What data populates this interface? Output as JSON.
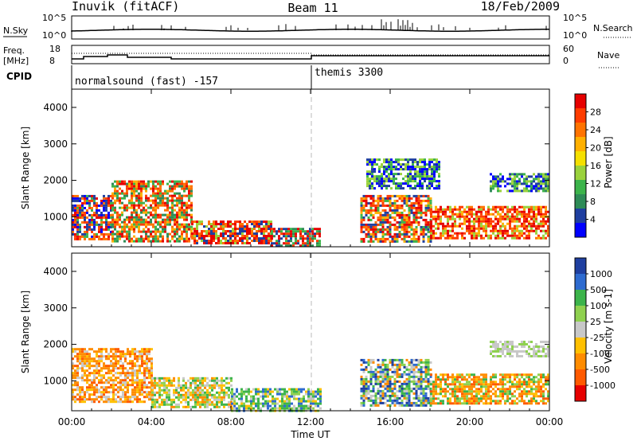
{
  "header": {
    "station": "Inuvik (fitACF)",
    "beam": "Beam 11",
    "date": "18/Feb/2009"
  },
  "top_panels": {
    "nsky_label": "N.Sky",
    "nsky_ticks": [
      "10^5",
      "10^0"
    ],
    "nsearch_label": "N.Search",
    "nsearch_ticks": [
      "10^5",
      "10^0"
    ],
    "freq_label_1": "Freq.",
    "freq_label_2": "[MHz]",
    "freq_ticks": [
      "18",
      "8"
    ],
    "nave_label": "Nave",
    "nave_ticks": [
      "60",
      "0"
    ],
    "cpid_label": "CPID",
    "cpid_segments": [
      "normalsound (fast) -157",
      "themis 3300"
    ]
  },
  "chart_data": [
    {
      "type": "heatmap",
      "ylabel": "Slant Range [km]",
      "y_ticks": [
        "1000",
        "2000",
        "3000",
        "4000"
      ],
      "y_tick_values": [
        1000,
        2000,
        3000,
        4000
      ],
      "ylim": [
        180,
        4500
      ],
      "x_ticks": [
        "00:00",
        "04:00",
        "08:00",
        "12:00",
        "16:00",
        "20:00",
        "00:00"
      ],
      "colorbar": {
        "label": "Power [dB]",
        "ticks": [
          "28",
          "24",
          "20",
          "16",
          "12",
          "8",
          "4"
        ],
        "colors": [
          "#e60000",
          "#ff3c00",
          "#ff7300",
          "#ffb000",
          "#f5e000",
          "#9ad23c",
          "#3cb44b",
          "#2e8b57",
          "#1f3fa0",
          "#0000ff"
        ]
      },
      "echo_regions": [
        {
          "start_hr": 0.0,
          "end_hr": 2.0,
          "range_min": 400,
          "range_max": 1600,
          "levels": [
            0,
            1,
            2,
            6,
            8,
            9
          ]
        },
        {
          "start_hr": 2.0,
          "end_hr": 6.0,
          "range_min": 300,
          "range_max": 2000,
          "levels": [
            0,
            1,
            2,
            3,
            6,
            7
          ]
        },
        {
          "start_hr": 6.0,
          "end_hr": 10.0,
          "range_min": 250,
          "range_max": 900,
          "levels": [
            0,
            0,
            1,
            2,
            5,
            8
          ]
        },
        {
          "start_hr": 10.0,
          "end_hr": 12.5,
          "range_min": 200,
          "range_max": 700,
          "levels": [
            0,
            1,
            6,
            7,
            8
          ]
        },
        {
          "start_hr": 14.5,
          "end_hr": 18.0,
          "range_min": 300,
          "range_max": 1600,
          "levels": [
            0,
            1,
            2,
            3,
            6,
            8
          ]
        },
        {
          "start_hr": 18.0,
          "end_hr": 24.0,
          "range_min": 400,
          "range_max": 1300,
          "levels": [
            0,
            0,
            1,
            1,
            2,
            3,
            5
          ]
        },
        {
          "start_hr": 14.8,
          "end_hr": 18.5,
          "range_min": 1800,
          "range_max": 2600,
          "levels": [
            5,
            6,
            8,
            9
          ]
        },
        {
          "start_hr": 21.0,
          "end_hr": 24.0,
          "range_min": 1700,
          "range_max": 2200,
          "levels": [
            5,
            6,
            7,
            8,
            9
          ]
        }
      ]
    },
    {
      "type": "heatmap",
      "ylabel": "Slant Range [km]",
      "y_ticks": [
        "1000",
        "2000",
        "3000",
        "4000"
      ],
      "y_tick_values": [
        1000,
        2000,
        3000,
        4000
      ],
      "ylim": [
        180,
        4500
      ],
      "x_ticks": [
        "00:00",
        "04:00",
        "08:00",
        "12:00",
        "16:00",
        "20:00",
        "00:00"
      ],
      "xlabel": "Time UT",
      "colorbar": {
        "label": "Velocity [m s-1]",
        "ticks": [
          "1000",
          "500",
          "100",
          "25",
          "-25",
          "-100",
          "-500",
          "-1000"
        ],
        "colors": [
          "#1f3fa0",
          "#2e6bd0",
          "#3cb44b",
          "#8fd14f",
          "#c8c8c8",
          "#ffc000",
          "#ff8c00",
          "#ff5a00",
          "#e60000"
        ]
      },
      "echo_regions": [
        {
          "start_hr": 0.0,
          "end_hr": 4.0,
          "range_min": 400,
          "range_max": 1900,
          "levels": [
            6,
            6,
            7,
            5,
            4
          ]
        },
        {
          "start_hr": 4.0,
          "end_hr": 8.0,
          "range_min": 300,
          "range_max": 1100,
          "levels": [
            4,
            3,
            6,
            2,
            5
          ]
        },
        {
          "start_hr": 8.0,
          "end_hr": 12.5,
          "range_min": 200,
          "range_max": 800,
          "levels": [
            2,
            3,
            2,
            4,
            5,
            1
          ]
        },
        {
          "start_hr": 14.5,
          "end_hr": 18.0,
          "range_min": 300,
          "range_max": 1600,
          "levels": [
            2,
            3,
            1,
            0,
            4,
            6
          ]
        },
        {
          "start_hr": 18.0,
          "end_hr": 24.0,
          "range_min": 350,
          "range_max": 1200,
          "levels": [
            6,
            6,
            7,
            5,
            2,
            3
          ]
        },
        {
          "start_hr": 21.0,
          "end_hr": 24.0,
          "range_min": 1700,
          "range_max": 2100,
          "levels": [
            4,
            3,
            4
          ]
        }
      ]
    }
  ]
}
